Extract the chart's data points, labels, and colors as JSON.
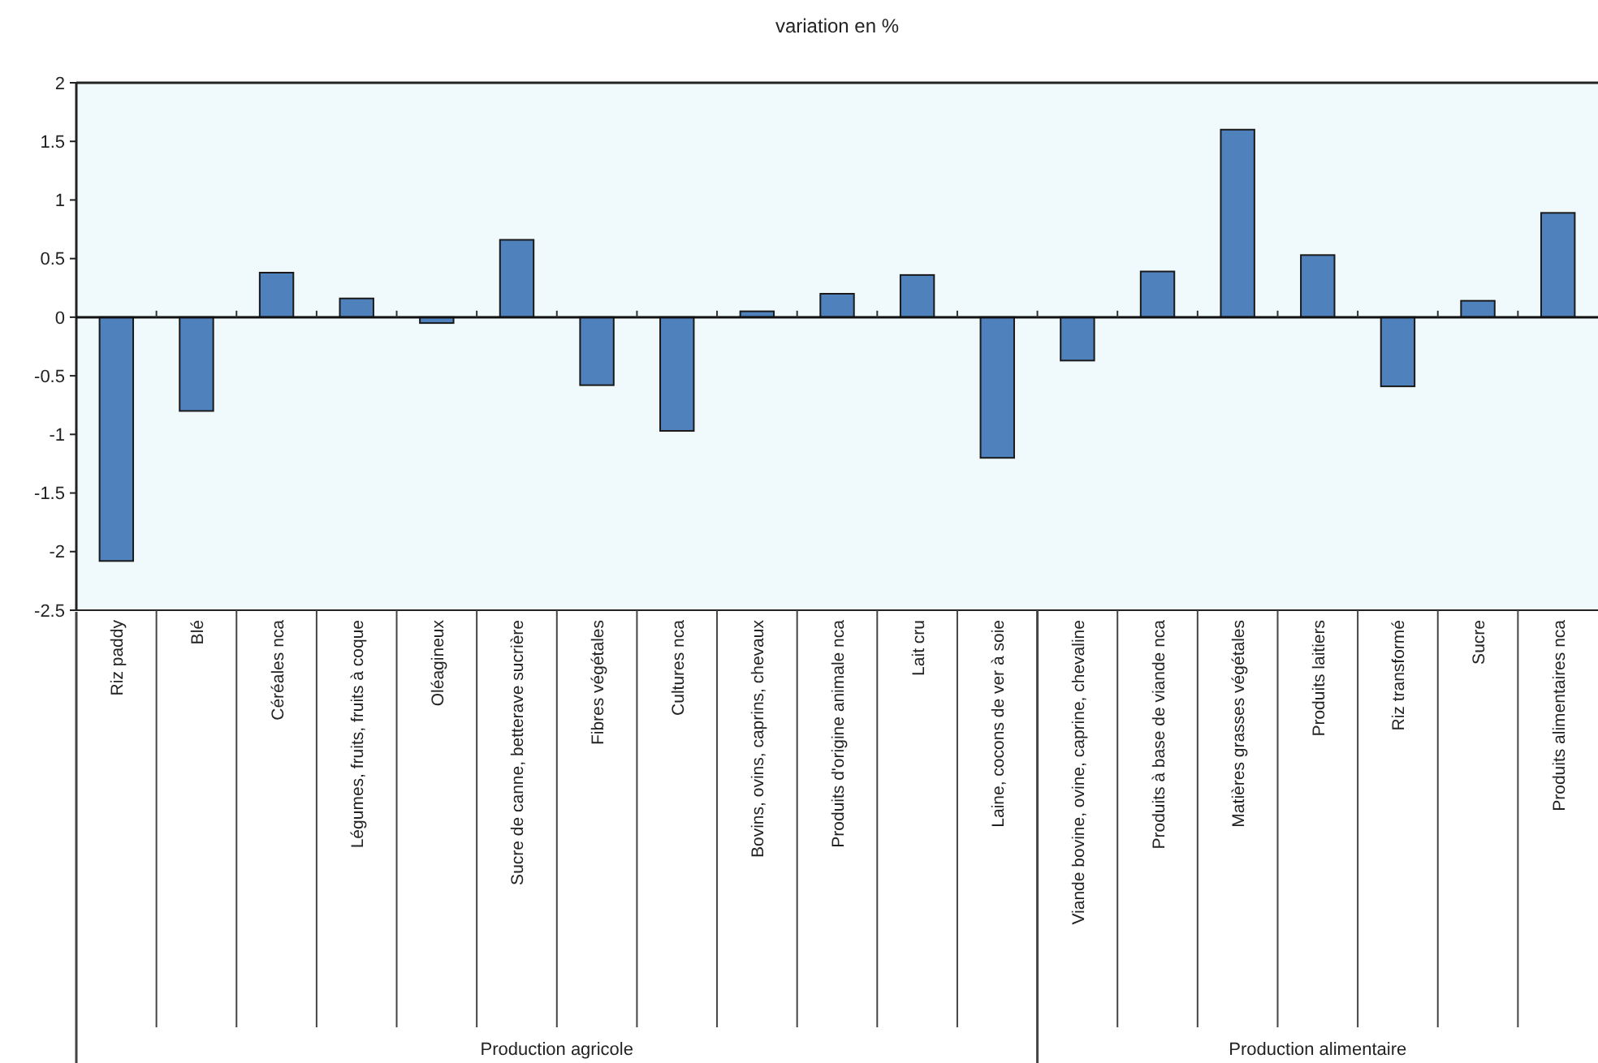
{
  "chart_data": {
    "type": "bar",
    "title": "variation en %",
    "categories": [
      "Riz paddy",
      "Blé",
      "Céréales nca",
      "Légumes, fruits, fruits à coque",
      "Oléagineux",
      "Sucre de canne, betterave sucrière",
      "Fibres végétales",
      "Cultures nca",
      "Bovins, ovins, caprins, chevaux",
      "Produits d'origine animale nca",
      "Lait cru",
      "Laine, cocons de ver à soie",
      "Viande bovine, ovine, caprine, chevaline",
      "Produits à base de viande nca",
      "Matières grasses végétales",
      "Produits laitiers",
      "Riz transformé",
      "Sucre",
      "Produits alimentaires nca"
    ],
    "values": [
      -2.08,
      -0.8,
      0.38,
      0.16,
      -0.05,
      0.66,
      -0.58,
      -0.97,
      0.05,
      0.2,
      0.36,
      -1.2,
      -0.37,
      0.39,
      1.6,
      0.53,
      -0.59,
      0.14,
      0.89
    ],
    "color": "#4f81bd",
    "ylim": [
      -2.5,
      2
    ],
    "yticks": [
      -2.5,
      -2,
      -1.5,
      -1,
      -0.5,
      0,
      0.5,
      1,
      1.5,
      2
    ],
    "annotations": [
      "Production agricole",
      "Production alimentaire"
    ]
  }
}
